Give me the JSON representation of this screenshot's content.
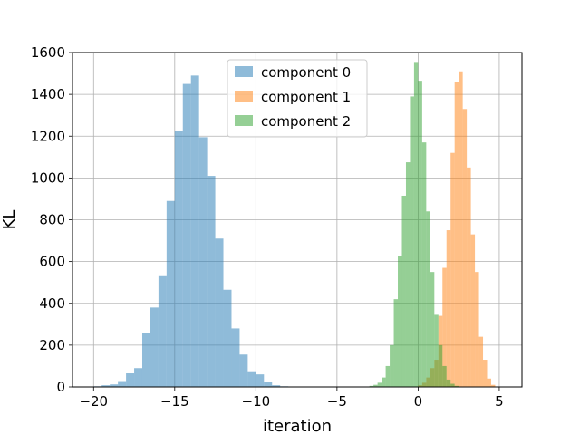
{
  "chart_data": {
    "type": "bar",
    "subtype": "histogram",
    "xlabel": "iteration",
    "ylabel": "KL",
    "xlim": [
      -21.3,
      6.4
    ],
    "ylim": [
      0,
      1600
    ],
    "xticks": [
      -20,
      -15,
      -10,
      -5,
      0,
      5
    ],
    "yticks": [
      0,
      200,
      400,
      600,
      800,
      1000,
      1200,
      1400,
      1600
    ],
    "grid": true,
    "legend_position": "top-center",
    "series": [
      {
        "name": "component 0",
        "color": "#1f77b4",
        "opacity": 0.5,
        "bin_width": 0.5,
        "bins": [
          {
            "x": -20.0,
            "y": 3
          },
          {
            "x": -19.5,
            "y": 8
          },
          {
            "x": -19.0,
            "y": 12
          },
          {
            "x": -18.5,
            "y": 28
          },
          {
            "x": -18.0,
            "y": 65
          },
          {
            "x": -17.5,
            "y": 90
          },
          {
            "x": -17.0,
            "y": 260
          },
          {
            "x": -16.5,
            "y": 380
          },
          {
            "x": -16.0,
            "y": 530
          },
          {
            "x": -15.5,
            "y": 890
          },
          {
            "x": -15.0,
            "y": 1225
          },
          {
            "x": -14.5,
            "y": 1450
          },
          {
            "x": -14.0,
            "y": 1490
          },
          {
            "x": -13.5,
            "y": 1195
          },
          {
            "x": -13.0,
            "y": 1010
          },
          {
            "x": -12.5,
            "y": 710
          },
          {
            "x": -12.0,
            "y": 465
          },
          {
            "x": -11.5,
            "y": 280
          },
          {
            "x": -11.0,
            "y": 155
          },
          {
            "x": -10.5,
            "y": 75
          },
          {
            "x": -10.0,
            "y": 60
          },
          {
            "x": -9.5,
            "y": 22
          },
          {
            "x": -9.0,
            "y": 8
          },
          {
            "x": -8.5,
            "y": 3
          }
        ]
      },
      {
        "name": "component 1",
        "color": "#ff7f0e",
        "opacity": 0.5,
        "bin_width": 0.25,
        "bins": [
          {
            "x": 0.0,
            "y": 8
          },
          {
            "x": 0.25,
            "y": 20
          },
          {
            "x": 0.5,
            "y": 45
          },
          {
            "x": 0.75,
            "y": 90
          },
          {
            "x": 1.0,
            "y": 130
          },
          {
            "x": 1.25,
            "y": 340
          },
          {
            "x": 1.5,
            "y": 570
          },
          {
            "x": 1.75,
            "y": 750
          },
          {
            "x": 2.0,
            "y": 1120
          },
          {
            "x": 2.25,
            "y": 1460
          },
          {
            "x": 2.5,
            "y": 1510
          },
          {
            "x": 2.75,
            "y": 1330
          },
          {
            "x": 3.0,
            "y": 1050
          },
          {
            "x": 3.25,
            "y": 730
          },
          {
            "x": 3.5,
            "y": 550
          },
          {
            "x": 3.75,
            "y": 240
          },
          {
            "x": 4.0,
            "y": 130
          },
          {
            "x": 4.25,
            "y": 40
          },
          {
            "x": 4.5,
            "y": 10
          }
        ]
      },
      {
        "name": "component 2",
        "color": "#2ca02c",
        "opacity": 0.5,
        "bin_width": 0.25,
        "bins": [
          {
            "x": -3.25,
            "y": 2
          },
          {
            "x": -3.0,
            "y": 5
          },
          {
            "x": -2.75,
            "y": 10
          },
          {
            "x": -2.5,
            "y": 20
          },
          {
            "x": -2.25,
            "y": 45
          },
          {
            "x": -2.0,
            "y": 100
          },
          {
            "x": -1.75,
            "y": 200
          },
          {
            "x": -1.5,
            "y": 420
          },
          {
            "x": -1.25,
            "y": 625
          },
          {
            "x": -1.0,
            "y": 915
          },
          {
            "x": -0.75,
            "y": 1075
          },
          {
            "x": -0.5,
            "y": 1390
          },
          {
            "x": -0.25,
            "y": 1555
          },
          {
            "x": 0.0,
            "y": 1465
          },
          {
            "x": 0.25,
            "y": 1170
          },
          {
            "x": 0.5,
            "y": 840
          },
          {
            "x": 0.75,
            "y": 550
          },
          {
            "x": 1.0,
            "y": 345
          },
          {
            "x": 1.25,
            "y": 200
          },
          {
            "x": 1.5,
            "y": 100
          },
          {
            "x": 1.75,
            "y": 35
          },
          {
            "x": 2.0,
            "y": 15
          },
          {
            "x": 2.25,
            "y": 5
          }
        ]
      }
    ]
  }
}
